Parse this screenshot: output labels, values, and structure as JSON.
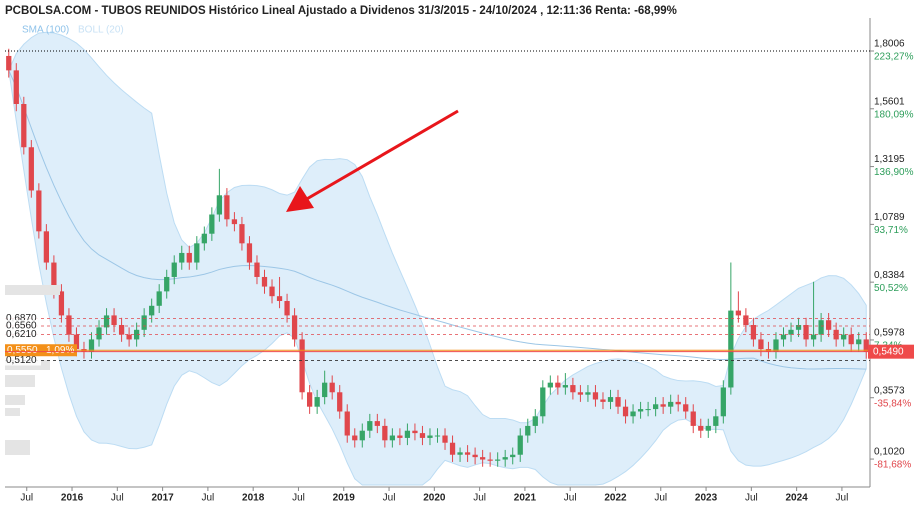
{
  "chart_data": {
    "type": "candlestick",
    "title": "PCBOLSA.COM - TUBOS REUNIDOS Histórico Lineal Ajustado a Dividenos 31/3/2015 - 24/10/2024 , 12:11:36 Renta: -68,99%",
    "legend": [
      "SMA (100)",
      "BOLL (20)"
    ],
    "colors": {
      "up": "#36a567",
      "down": "#e0474c",
      "band": "#d8ebf9",
      "sma": "#9cc6e6",
      "level": "#e0474c",
      "positive": "#2e9e5b",
      "negative": "#e0474c",
      "last": "#ef4a4a",
      "marker": "#f39019"
    },
    "open": [
      1.78,
      1.72,
      1.58,
      1.4,
      1.22,
      1.05,
      0.92,
      0.8,
      0.7,
      0.62,
      0.56,
      0.55,
      0.6,
      0.65,
      0.7,
      0.66,
      0.62,
      0.6,
      0.64,
      0.7,
      0.74,
      0.8,
      0.86,
      0.92,
      0.96,
      0.92,
      1.0,
      1.04,
      1.12,
      1.2,
      1.1,
      1.08,
      1.0,
      0.92,
      0.86,
      0.82,
      0.78,
      0.76,
      0.7,
      0.6,
      0.38,
      0.32,
      0.36,
      0.42,
      0.38,
      0.3,
      0.2,
      0.18,
      0.22,
      0.26,
      0.24,
      0.18,
      0.2,
      0.19,
      0.22,
      0.21,
      0.19,
      0.2,
      0.2,
      0.17,
      0.12,
      0.13,
      0.12,
      0.11,
      0.1,
      0.095,
      0.1,
      0.11,
      0.12,
      0.2,
      0.24,
      0.28,
      0.4,
      0.42,
      0.4,
      0.41,
      0.38,
      0.37,
      0.38,
      0.35,
      0.34,
      0.36,
      0.32,
      0.28,
      0.3,
      0.31,
      0.31,
      0.33,
      0.32,
      0.34,
      0.33,
      0.3,
      0.24,
      0.22,
      0.24,
      0.28,
      0.4,
      0.72,
      0.7,
      0.66,
      0.6,
      0.56,
      0.55,
      0.6,
      0.62,
      0.64,
      0.66,
      0.6,
      0.62,
      0.68,
      0.64,
      0.6,
      0.62,
      0.58,
      0.6
    ],
    "high": [
      1.81,
      1.75,
      1.61,
      1.43,
      1.25,
      1.08,
      0.95,
      0.83,
      0.73,
      0.65,
      0.59,
      0.63,
      0.68,
      0.73,
      0.73,
      0.69,
      0.65,
      0.67,
      0.73,
      0.77,
      0.83,
      0.89,
      0.95,
      0.99,
      0.99,
      1.03,
      1.07,
      1.15,
      1.31,
      1.23,
      1.13,
      1.11,
      1.03,
      0.95,
      0.89,
      0.85,
      0.86,
      0.79,
      0.73,
      0.63,
      0.41,
      0.39,
      0.47,
      0.45,
      0.41,
      0.33,
      0.23,
      0.25,
      0.29,
      0.29,
      0.27,
      0.23,
      0.23,
      0.25,
      0.25,
      0.24,
      0.23,
      0.23,
      0.23,
      0.2,
      0.15,
      0.16,
      0.15,
      0.14,
      0.13,
      0.13,
      0.14,
      0.15,
      0.23,
      0.27,
      0.31,
      0.43,
      0.45,
      0.45,
      0.46,
      0.44,
      0.41,
      0.41,
      0.41,
      0.38,
      0.39,
      0.39,
      0.35,
      0.33,
      0.34,
      0.34,
      0.36,
      0.36,
      0.37,
      0.37,
      0.36,
      0.33,
      0.27,
      0.27,
      0.31,
      0.43,
      0.92,
      0.8,
      0.73,
      0.69,
      0.63,
      0.59,
      0.63,
      0.65,
      0.67,
      0.69,
      0.69,
      0.84,
      0.71,
      0.71,
      0.67,
      0.65,
      0.65,
      0.63,
      0.63
    ],
    "low": [
      1.69,
      1.55,
      1.37,
      1.19,
      1.02,
      0.89,
      0.77,
      0.67,
      0.59,
      0.53,
      0.52,
      0.52,
      0.57,
      0.62,
      0.63,
      0.59,
      0.57,
      0.57,
      0.61,
      0.67,
      0.71,
      0.77,
      0.83,
      0.89,
      0.89,
      0.89,
      0.97,
      1.01,
      1.09,
      1.07,
      1.05,
      0.97,
      0.89,
      0.83,
      0.79,
      0.75,
      0.73,
      0.67,
      0.57,
      0.35,
      0.29,
      0.29,
      0.33,
      0.35,
      0.27,
      0.17,
      0.15,
      0.15,
      0.19,
      0.21,
      0.15,
      0.15,
      0.16,
      0.16,
      0.18,
      0.16,
      0.16,
      0.17,
      0.14,
      0.09,
      0.09,
      0.09,
      0.08,
      0.07,
      0.07,
      0.07,
      0.07,
      0.08,
      0.09,
      0.17,
      0.21,
      0.25,
      0.37,
      0.37,
      0.37,
      0.35,
      0.34,
      0.34,
      0.32,
      0.31,
      0.31,
      0.29,
      0.25,
      0.25,
      0.27,
      0.28,
      0.28,
      0.29,
      0.29,
      0.3,
      0.27,
      0.21,
      0.19,
      0.19,
      0.21,
      0.25,
      0.37,
      0.67,
      0.63,
      0.57,
      0.53,
      0.52,
      0.52,
      0.57,
      0.59,
      0.61,
      0.57,
      0.57,
      0.59,
      0.61,
      0.57,
      0.57,
      0.55,
      0.55,
      0.52
    ],
    "close": [
      1.72,
      1.58,
      1.4,
      1.22,
      1.05,
      0.92,
      0.8,
      0.7,
      0.62,
      0.56,
      0.55,
      0.6,
      0.65,
      0.7,
      0.66,
      0.62,
      0.6,
      0.64,
      0.7,
      0.74,
      0.8,
      0.86,
      0.92,
      0.96,
      0.92,
      1.0,
      1.04,
      1.12,
      1.2,
      1.1,
      1.08,
      1.0,
      0.92,
      0.86,
      0.82,
      0.78,
      0.76,
      0.7,
      0.6,
      0.38,
      0.32,
      0.36,
      0.42,
      0.38,
      0.3,
      0.2,
      0.18,
      0.22,
      0.26,
      0.24,
      0.18,
      0.2,
      0.19,
      0.22,
      0.21,
      0.19,
      0.2,
      0.2,
      0.17,
      0.12,
      0.13,
      0.12,
      0.11,
      0.1,
      0.095,
      0.1,
      0.11,
      0.12,
      0.2,
      0.24,
      0.28,
      0.4,
      0.42,
      0.4,
      0.41,
      0.38,
      0.37,
      0.38,
      0.35,
      0.34,
      0.36,
      0.32,
      0.28,
      0.3,
      0.31,
      0.31,
      0.33,
      0.32,
      0.34,
      0.33,
      0.3,
      0.24,
      0.22,
      0.24,
      0.28,
      0.4,
      0.72,
      0.7,
      0.66,
      0.6,
      0.56,
      0.55,
      0.6,
      0.62,
      0.64,
      0.66,
      0.6,
      0.62,
      0.68,
      0.64,
      0.6,
      0.62,
      0.58,
      0.6,
      0.549
    ],
    "xlim": [
      2015.26,
      2024.81
    ],
    "xticks": [
      {
        "value": 2015.5,
        "label": "Jul"
      },
      2016,
      {
        "value": 2016.5,
        "label": "Jul"
      },
      2017,
      {
        "value": 2017.5,
        "label": "Jul"
      },
      2018,
      {
        "value": 2018.5,
        "label": "Jul"
      },
      2019,
      {
        "value": 2019.5,
        "label": "Jul"
      },
      2020,
      {
        "value": 2020.5,
        "label": "Jul"
      },
      2021,
      {
        "value": 2021.5,
        "label": "Jul"
      },
      2022,
      {
        "value": 2022.5,
        "label": "Jul"
      },
      2023,
      {
        "value": 2023.5,
        "label": "Jul"
      },
      2024,
      {
        "value": 2024.5,
        "label": "Jul"
      }
    ],
    "ylim": [
      -0.006,
      1.938
    ],
    "yticks": [
      {
        "value": 1.8006,
        "label": "1,8006"
      },
      {
        "value": 1.5601,
        "label": "1,5601"
      },
      {
        "value": 1.3195,
        "label": "1,3195"
      },
      {
        "value": 1.0789,
        "label": "1,0789"
      },
      {
        "value": 0.8384,
        "label": "0,8384"
      },
      {
        "value": 0.5978,
        "label": "0,5978"
      },
      {
        "value": 0.3573,
        "label": "0,3573"
      },
      {
        "value": 0.102,
        "label": "0,1020"
      }
    ],
    "y2lim": [
      -101.07,
      247.94
    ],
    "y2ticks": [
      {
        "value": 223.27,
        "label": "223,27%"
      },
      {
        "value": 180.09,
        "label": "180,09%"
      },
      {
        "value": 136.9,
        "label": "136,90%"
      },
      {
        "value": 93.71,
        "label": "93,71%"
      },
      {
        "value": 50.52,
        "label": "50,52%"
      },
      {
        "value": 7.34,
        "label": "7,34%"
      },
      {
        "value": -35.84,
        "label": "-35,84%"
      },
      {
        "value": -81.68,
        "label": "-81,68%"
      }
    ],
    "levels": [
      {
        "value": 0.687,
        "label": "0,6870"
      },
      {
        "value": 0.656,
        "label": "0,6560"
      },
      {
        "value": 0.621,
        "label": "0,6210"
      },
      {
        "value": 0.512,
        "label": "0,5120"
      }
    ],
    "marker": {
      "value": 0.555,
      "label": "0,5550",
      "change": "1,09%"
    },
    "last": {
      "value": 0.549,
      "label": "0,5490"
    }
  }
}
